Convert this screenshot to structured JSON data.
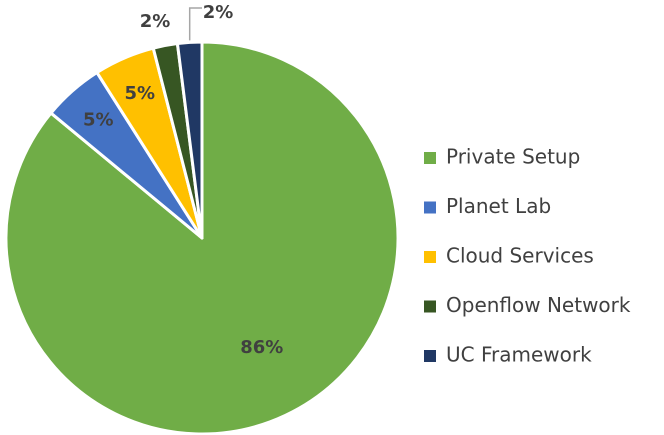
{
  "chart_data": {
    "type": "pie",
    "categories": [
      "Private Setup",
      "Planet Lab",
      "Cloud Services",
      "Openflow Network",
      "UC Framework"
    ],
    "values": [
      86,
      5,
      5,
      2,
      2
    ],
    "data_labels": [
      "86%",
      "5%",
      "5%",
      "2%",
      "2%"
    ],
    "colors": [
      "#70ad47",
      "#4472c4",
      "#ffc000",
      "#375623",
      "#203864"
    ],
    "legend_position": "right",
    "start_angle_deg": 0,
    "direction": "clockwise"
  }
}
